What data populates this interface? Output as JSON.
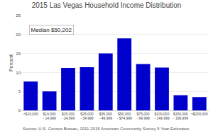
{
  "chart_data": {
    "type": "bar",
    "title": "2015 Las Vegas Household Income Distribution",
    "ylabel": "Percent",
    "annotation": "Median $50,202",
    "source": "Source: U.S. Census Bureau, 2011-2015 American Community Survey 5 Year Estimates",
    "categories": [
      "<$10,000",
      "$10,000\n- 14,999",
      "$15,000\n- 24,999",
      "$25,000\n- 34,999",
      "$35,000\n- 49,999",
      "$50,000\n- $74,999",
      "$75,000\n- 99,999",
      "$100,000\n- 149,999",
      "$150,000\n- 199,999",
      ">$200,000"
    ],
    "values": [
      7.6,
      5.0,
      11.2,
      11.4,
      15.0,
      19.0,
      12.2,
      11.3,
      4.0,
      3.5
    ],
    "color": "#0000cc",
    "ylim": [
      0,
      25
    ],
    "yticks": [
      0,
      5,
      10,
      15,
      20,
      25
    ],
    "grid": true
  }
}
